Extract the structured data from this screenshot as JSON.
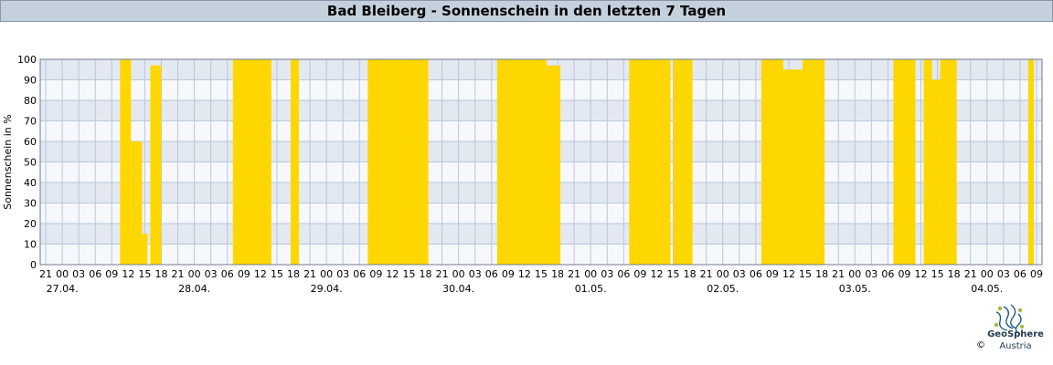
{
  "title": "Bad Bleiberg - Sonnenschein in den letzten 7 Tagen",
  "brand": {
    "name": "GeoSphere",
    "sub": "Austria",
    "copyright": "©"
  },
  "colors": {
    "bar": "#ffd700",
    "band": "#e3e8f1",
    "grid": "#b6c8dc",
    "title_bg": "#c5d0dd"
  },
  "chart_data": {
    "type": "area",
    "ylabel": "Sonnenschein in %",
    "ylim": [
      0,
      100
    ],
    "yticks": [
      0,
      10,
      20,
      30,
      40,
      50,
      60,
      70,
      80,
      90,
      100
    ],
    "x_range_hours": [
      -4,
      178
    ],
    "hour_ticks": [
      "21",
      "00",
      "03",
      "06",
      "09",
      "12",
      "15",
      "18",
      "21",
      "00",
      "03",
      "06",
      "09",
      "12",
      "15",
      "18",
      "21",
      "00",
      "03",
      "06",
      "09",
      "12",
      "15",
      "18",
      "21",
      "00",
      "03",
      "06",
      "09",
      "12",
      "15",
      "18",
      "21",
      "00",
      "03",
      "06",
      "09",
      "12",
      "15",
      "18",
      "21",
      "00",
      "03",
      "06",
      "09",
      "12",
      "15",
      "18",
      "21",
      "00",
      "03",
      "06",
      "09",
      "12",
      "15",
      "18",
      "21",
      "00",
      "03",
      "06",
      "09"
    ],
    "dates": [
      "27.04.",
      "28.04.",
      "29.04.",
      "30.04.",
      "01.05.",
      "02.05.",
      "03.05.",
      "04.05."
    ],
    "grid": true,
    "sunshine_segments": [
      {
        "start": "27.04. 10:30",
        "end": "27.04. 12:30",
        "level": 100
      },
      {
        "start": "27.04. 12:30",
        "end": "27.04. 14:30",
        "level": 60
      },
      {
        "start": "27.04. 14:30",
        "end": "27.04. 15:30",
        "level": 15
      },
      {
        "start": "27.04. 16:00",
        "end": "27.04. 18:00",
        "level": 97
      },
      {
        "start": "28.04. 07:00",
        "end": "28.04. 14:00",
        "level": 100
      },
      {
        "start": "28.04. 17:30",
        "end": "28.04. 19:00",
        "level": 100
      },
      {
        "start": "29.04. 07:30",
        "end": "29.04. 18:30",
        "level": 100
      },
      {
        "start": "30.04. 07:00",
        "end": "30.04. 16:00",
        "level": 100
      },
      {
        "start": "30.04. 16:00",
        "end": "30.04. 18:30",
        "level": 97
      },
      {
        "start": "01.05. 07:00",
        "end": "01.05. 14:30",
        "level": 100
      },
      {
        "start": "01.05. 15:00",
        "end": "01.05. 18:30",
        "level": 100
      },
      {
        "start": "02.05. 07:00",
        "end": "02.05. 11:00",
        "level": 100
      },
      {
        "start": "02.05. 11:00",
        "end": "02.05. 14:30",
        "level": 95
      },
      {
        "start": "02.05. 14:30",
        "end": "02.05. 18:30",
        "level": 100
      },
      {
        "start": "03.05. 07:00",
        "end": "03.05. 11:00",
        "level": 100
      },
      {
        "start": "03.05. 12:30",
        "end": "03.05. 14:00",
        "level": 100
      },
      {
        "start": "03.05. 14:00",
        "end": "03.05. 15:30",
        "level": 90
      },
      {
        "start": "03.05. 15:30",
        "end": "03.05. 18:30",
        "level": 100
      },
      {
        "start": "04.05. 07:30",
        "end": "04.05. 08:30",
        "level": 100
      }
    ]
  }
}
